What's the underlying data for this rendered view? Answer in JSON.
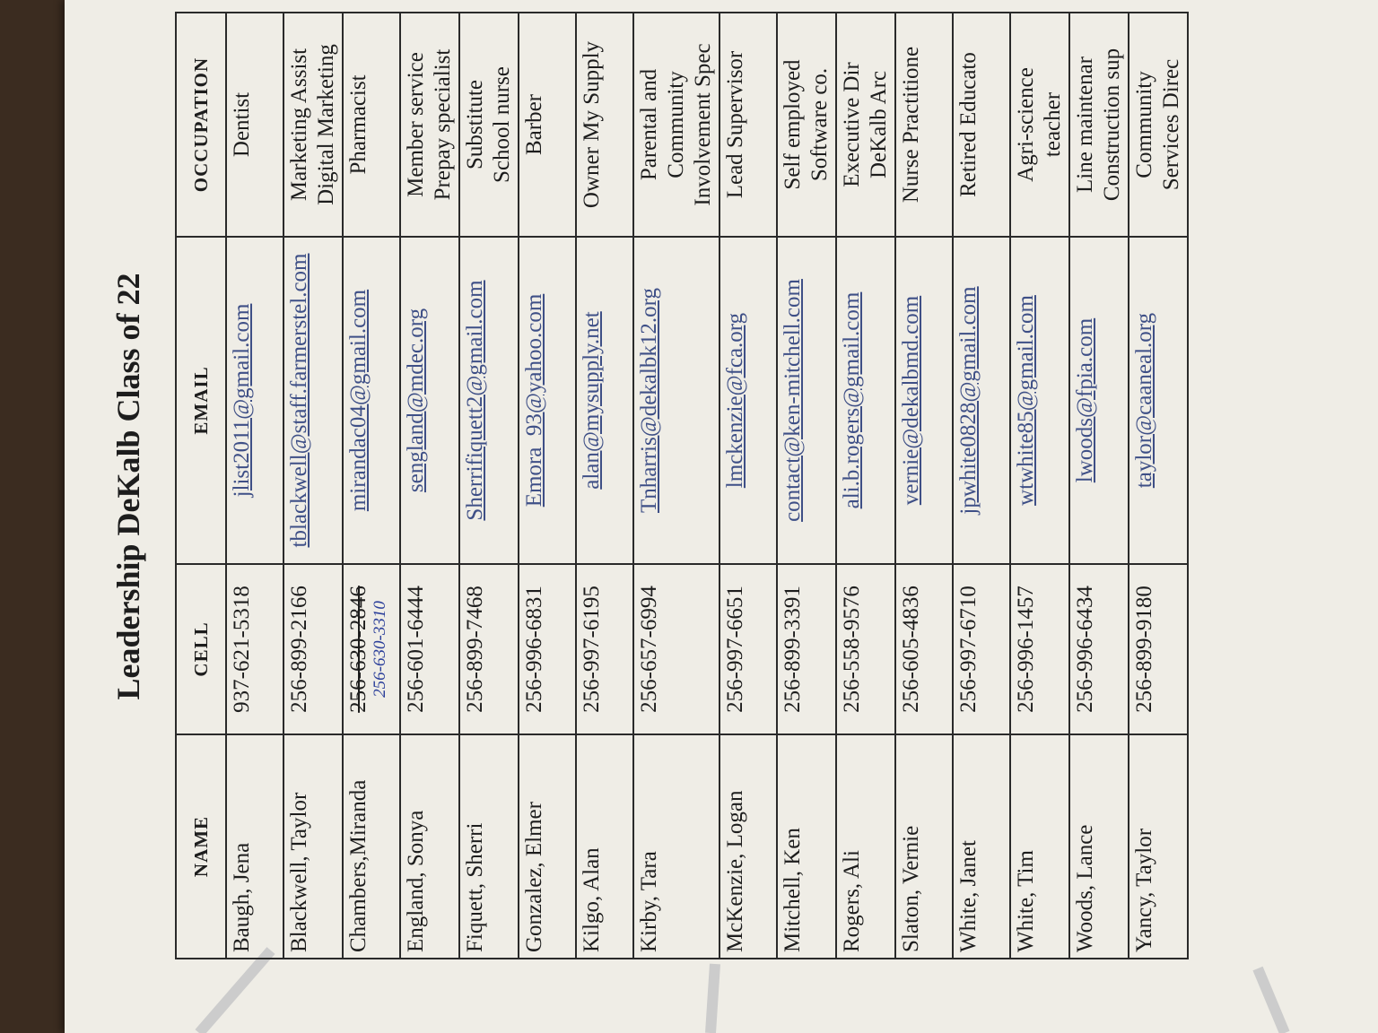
{
  "title": "Leadership DeKalb Class of 22",
  "table": {
    "headers": [
      "NAME",
      "CELL",
      "EMAIL",
      "OCCUPATION"
    ],
    "rows": [
      {
        "name": "Baugh, Jena",
        "cell": "937-621-5318",
        "email": "jlist2011@gmail.com",
        "occupation": "Dentist"
      },
      {
        "name": "Blackwell, Taylor",
        "cell": "256-899-2166",
        "email": "tblackwell@staff.farmerstel.com",
        "occupation": "Marketing Assist\nDigital Marketing"
      },
      {
        "name": "Chambers,Miranda",
        "cell": "256-630-2846",
        "cell_handwritten": "256-630-3310",
        "email": "mirandac04@gmail.com",
        "occupation": "Pharmacist"
      },
      {
        "name": "England, Sonya",
        "cell": "256-601-6444",
        "email": "sengland@mdec.org",
        "occupation": "Member service\nPrepay specialist"
      },
      {
        "name": "Fiquett, Sherri",
        "cell": "256-899-7468",
        "email": "Sherrifiquett2@gmail.com",
        "occupation": "Substitute\nSchool nurse"
      },
      {
        "name": "Gonzalez,  Elmer",
        "cell": "256-996-6831",
        "email": "Emora_93@yahoo.com",
        "occupation": "Barber"
      },
      {
        "name": "Kilgo, Alan",
        "cell": "256-997-6195",
        "email": "alan@mysupply.net",
        "occupation": "Owner My Supply"
      },
      {
        "name": "Kirby, Tara",
        "cell": "256-657-6994",
        "email": "Tnharris@dekalbk12.org",
        "occupation": "Parental and\nCommunity\nInvolvement Spec"
      },
      {
        "name": "McKenzie, Logan",
        "cell": "256-997-6651",
        "email": "lmckenzie@fca.org",
        "occupation": "Lead Supervisor"
      },
      {
        "name": "Mitchell, Ken",
        "cell": "256-899-3391",
        "email": "contact@ken-mitchell.com",
        "occupation": "Self employed\nSoftware co."
      },
      {
        "name": "Rogers, Ali",
        "cell": "256-558-9576",
        "email": "ali.b.rogers@gmail.com",
        "occupation": "Executive Dir\nDeKalb Arc"
      },
      {
        "name": "Slaton, Vernie",
        "cell": "256-605-4836",
        "email": "vernie@dekalbmd.com",
        "occupation": "Nurse Practitione"
      },
      {
        "name": "White, Janet",
        "cell": "256-997-6710",
        "email": "jpwhite0828@gmail.com",
        "occupation": "Retired Educato"
      },
      {
        "name": "White, Tim",
        "cell": "256-996-1457",
        "email": "wtwhite85@gmail.com",
        "occupation": "Agri-science\nteacher"
      },
      {
        "name": "Woods, Lance",
        "cell": "256-996-6434",
        "email": "lwoods@fpia.com",
        "occupation": "Line maintenar\nConstruction sup"
      },
      {
        "name": "Yancy, Taylor",
        "cell": "256-899-9180",
        "email": "taylor@caaneal.org",
        "occupation": "Community\nServices Direc"
      }
    ]
  }
}
